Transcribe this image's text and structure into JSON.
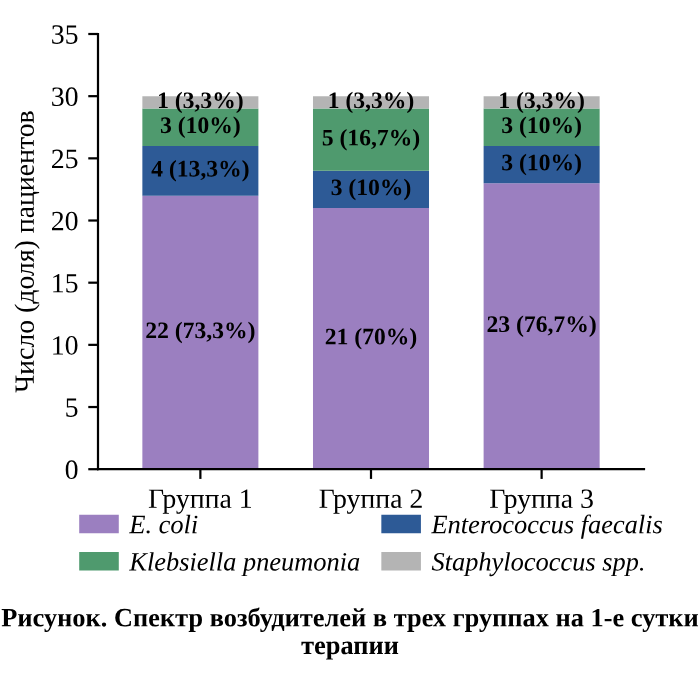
{
  "chart_data": {
    "type": "bar",
    "stacked": true,
    "categories": [
      "Группа 1",
      "Группа 2",
      "Группа 3"
    ],
    "series": [
      {
        "name": "E. coli",
        "color": "#9b7fc0",
        "values": [
          22,
          21,
          23
        ],
        "value_labels": [
          "22 (73,3%)",
          "21 (70%)",
          "23 (76,7%)"
        ]
      },
      {
        "name": "Enterococcus faecalis",
        "color": "#2d5a96",
        "values": [
          4,
          3,
          3
        ],
        "value_labels": [
          "4 (13,3%)",
          "3 (10%)",
          "3 (10%)"
        ]
      },
      {
        "name": "Klebsiella pneumonia",
        "color": "#4f9a6e",
        "values": [
          3,
          5,
          3
        ],
        "value_labels": [
          "3 (10%)",
          "5 (16,7%)",
          "3 (10%)"
        ]
      },
      {
        "name": "Staphylococcus spp.",
        "color": "#b4b4b4",
        "values": [
          1,
          1,
          1
        ],
        "value_labels": [
          "1 (3,3%)",
          "1 (3,3%)",
          "1 (3,3%)"
        ]
      }
    ],
    "ylabel": "Число (доля) пациентов",
    "ylim": [
      0,
      35
    ],
    "yticks": [
      0,
      5,
      10,
      15,
      20,
      25,
      30,
      35
    ],
    "legend": "bottom",
    "grid": false,
    "annotations": [
      "Рисунок. Спектр возбудителей в трех группах на 1-е сутки терапии"
    ]
  }
}
